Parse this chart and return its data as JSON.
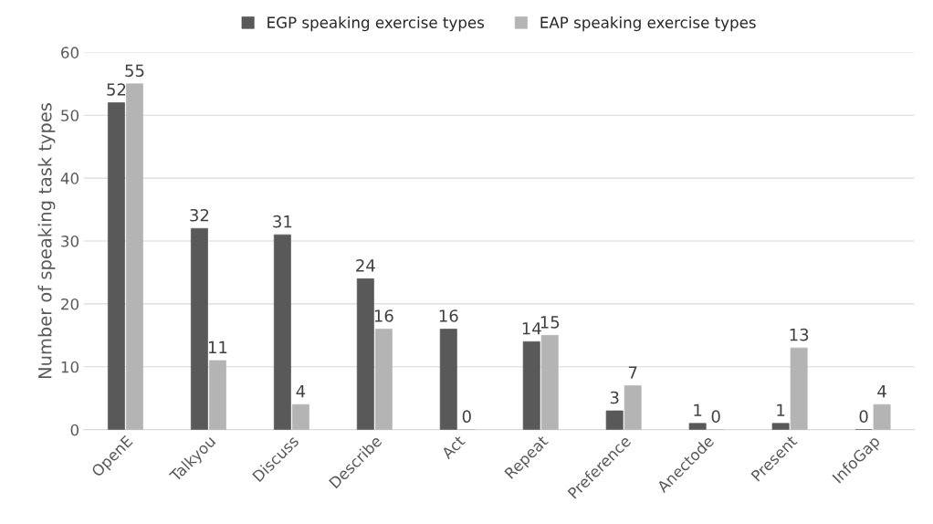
{
  "chart_data": {
    "type": "bar",
    "ylabel": "Number of speaking task types",
    "categories": [
      "OpenE",
      "Talkyou",
      "Discuss",
      "Describe",
      "Act",
      "Repeat",
      "Preference",
      "Anectode",
      "Present",
      "InfoGap"
    ],
    "series": [
      {
        "name": "EGP speaking exercise types",
        "color": "#595959",
        "values": [
          52,
          32,
          31,
          24,
          16,
          14,
          3,
          1,
          1,
          0
        ]
      },
      {
        "name": "EAP speaking exercise types",
        "color": "#b4b4b4",
        "values": [
          55,
          11,
          4,
          16,
          0,
          15,
          7,
          0,
          13,
          4
        ]
      }
    ],
    "ylim": [
      0,
      60
    ],
    "yticks": [
      0,
      10,
      20,
      30,
      40,
      50,
      60
    ],
    "grid": "y",
    "legend": "top",
    "data_labels": true
  }
}
